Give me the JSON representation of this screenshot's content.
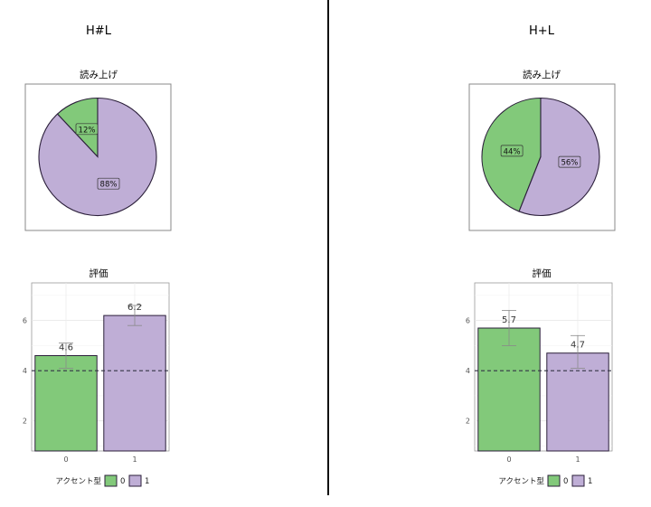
{
  "colors": {
    "group0": "#82c97a",
    "group1": "#bfaed6",
    "outline": "#2b1f3a",
    "refline": "#333344"
  },
  "legend": {
    "title": "アクセント型",
    "labels": [
      "0",
      "1"
    ]
  },
  "panels": [
    {
      "title": "H#L",
      "pie": {
        "title": "読み上げ",
        "slices": [
          {
            "label": "12%",
            "value": 12,
            "group": "0"
          },
          {
            "label": "88%",
            "value": 88,
            "group": "1"
          }
        ]
      },
      "bars": {
        "title": "評価",
        "categories": [
          "0",
          "1"
        ],
        "values": [
          4.6,
          6.2
        ],
        "value_labels": [
          "4.6",
          "6.2"
        ],
        "error_low": [
          4.1,
          5.8
        ],
        "error_high": [
          5.1,
          6.6
        ]
      }
    },
    {
      "title": "H+L",
      "pie": {
        "title": "読み上げ",
        "slices": [
          {
            "label": "44%",
            "value": 44,
            "group": "0"
          },
          {
            "label": "56%",
            "value": 56,
            "group": "1"
          }
        ]
      },
      "bars": {
        "title": "評価",
        "categories": [
          "0",
          "1"
        ],
        "values": [
          5.7,
          4.7
        ],
        "value_labels": [
          "5.7",
          "4.7"
        ],
        "error_low": [
          5.0,
          4.1
        ],
        "error_high": [
          6.4,
          5.4
        ]
      }
    }
  ],
  "chart_data": [
    {
      "type": "pie",
      "title": "読み上げ",
      "categories": [
        "0",
        "1"
      ],
      "values": [
        12,
        88
      ],
      "legend_title": "アクセント型",
      "panel": "H#L"
    },
    {
      "type": "bar",
      "title": "評価",
      "categories": [
        "0",
        "1"
      ],
      "values": [
        4.6,
        6.2
      ],
      "ylim": [
        0.8,
        7.5
      ],
      "yticks": [
        2,
        4,
        6
      ],
      "reference_line": 4,
      "grid": true,
      "legend_title": "アクセント型",
      "panel": "H#L"
    },
    {
      "type": "pie",
      "title": "読み上げ",
      "categories": [
        "0",
        "1"
      ],
      "values": [
        44,
        56
      ],
      "legend_title": "アクセント型",
      "panel": "H+L"
    },
    {
      "type": "bar",
      "title": "評価",
      "categories": [
        "0",
        "1"
      ],
      "values": [
        5.7,
        4.7
      ],
      "ylim": [
        0.8,
        7.5
      ],
      "yticks": [
        2,
        4,
        6
      ],
      "reference_line": 4,
      "grid": true,
      "legend_title": "アクセント型",
      "panel": "H+L"
    }
  ]
}
